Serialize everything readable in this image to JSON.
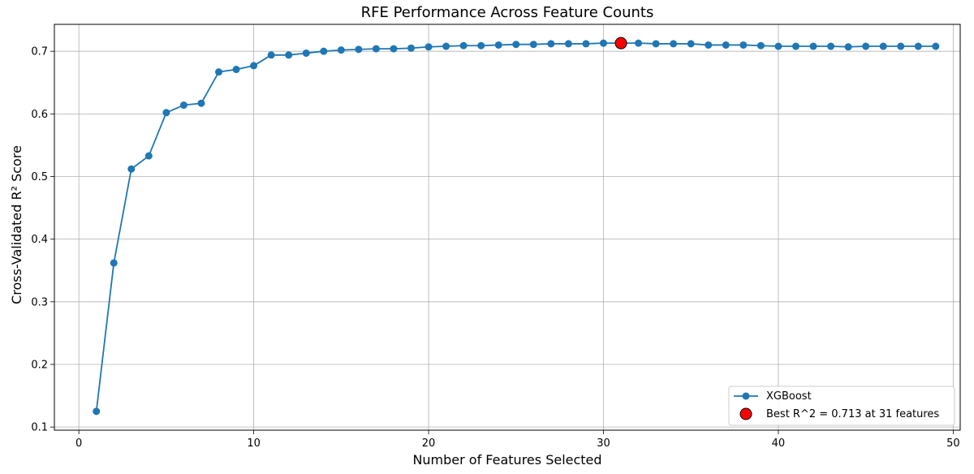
{
  "chart_data": {
    "type": "line",
    "title": "RFE Performance Across Feature Counts",
    "xlabel": "Number of Features Selected",
    "ylabel": "Cross-Validated R² Score",
    "xlim": [
      -1.4,
      50.4
    ],
    "ylim": [
      0.095,
      0.743
    ],
    "xticks": [
      0,
      10,
      20,
      30,
      40,
      50
    ],
    "yticks": [
      0.1,
      0.2,
      0.3,
      0.4,
      0.5,
      0.6,
      0.7
    ],
    "grid": true,
    "legend_position": "bottom-right",
    "series": [
      {
        "name": "XGBoost",
        "color": "#1f77b4",
        "marker": "circle",
        "x": [
          1,
          2,
          3,
          4,
          5,
          6,
          7,
          8,
          9,
          10,
          11,
          12,
          13,
          14,
          15,
          16,
          17,
          18,
          19,
          20,
          21,
          22,
          23,
          24,
          25,
          26,
          27,
          28,
          29,
          30,
          31,
          32,
          33,
          34,
          35,
          36,
          37,
          38,
          39,
          40,
          41,
          42,
          43,
          44,
          45,
          46,
          47,
          48,
          49
        ],
        "values": [
          0.125,
          0.362,
          0.512,
          0.533,
          0.602,
          0.614,
          0.617,
          0.667,
          0.671,
          0.677,
          0.694,
          0.694,
          0.697,
          0.7,
          0.702,
          0.703,
          0.704,
          0.704,
          0.705,
          0.707,
          0.708,
          0.709,
          0.709,
          0.71,
          0.711,
          0.711,
          0.712,
          0.712,
          0.712,
          0.713,
          0.713,
          0.713,
          0.712,
          0.712,
          0.712,
          0.71,
          0.71,
          0.71,
          0.709,
          0.708,
          0.708,
          0.708,
          0.708,
          0.707,
          0.708,
          0.708,
          0.708,
          0.708,
          0.708
        ]
      }
    ],
    "highlight": {
      "name": "Best R^2 = 0.713 at 31 features",
      "x": 31,
      "y": 0.713,
      "color": "#ff0000",
      "edge_color": "#000000"
    }
  }
}
